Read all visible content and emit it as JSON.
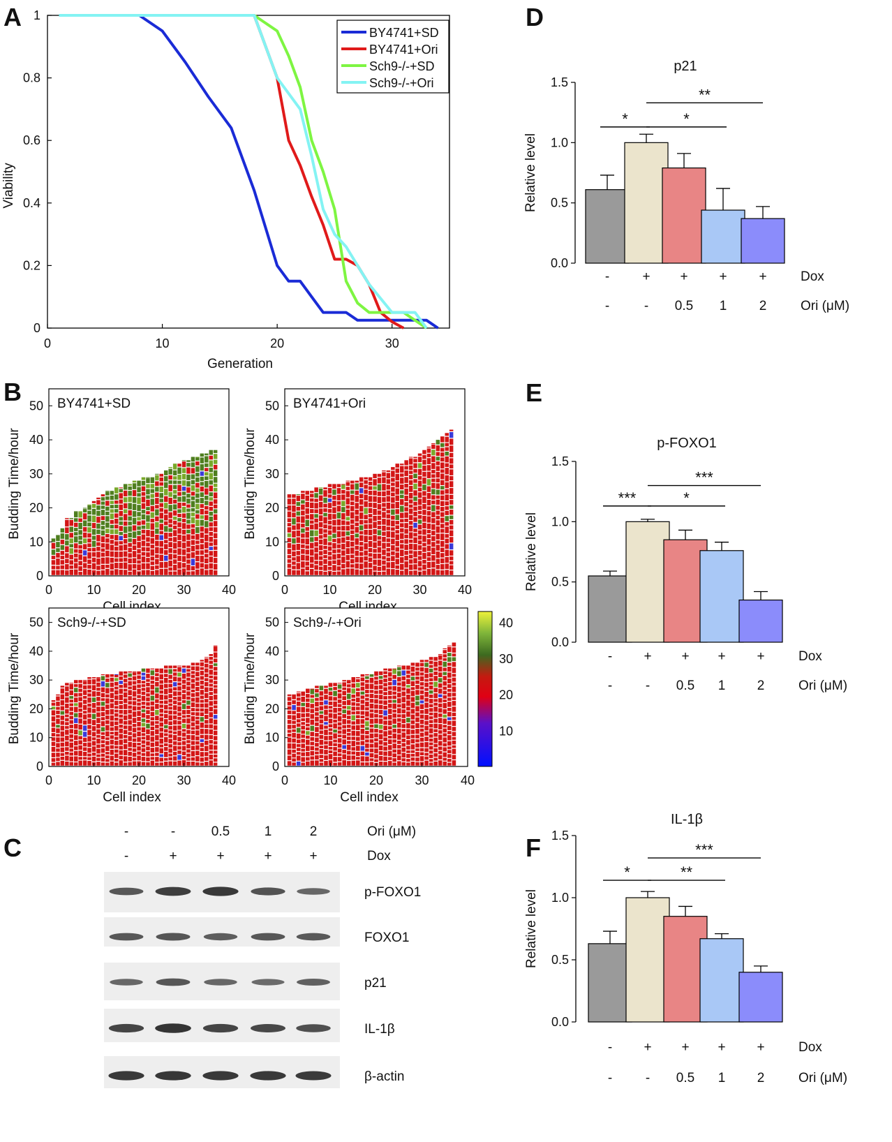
{
  "panel_labels": {
    "A": "A",
    "B": "B",
    "C": "C",
    "D": "D",
    "E": "E",
    "F": "F"
  },
  "colors": {
    "blue": "#1a2bd6",
    "red": "#e01a1a",
    "green": "#7ef542",
    "cyan": "#84f3f3"
  },
  "chart_data": [
    {
      "id": "A",
      "type": "line",
      "xlabel": "Generation",
      "ylabel": "Viability",
      "xlim": [
        0,
        35
      ],
      "ylim": [
        0,
        1
      ],
      "xticks": [
        "0",
        "10",
        "20",
        "30"
      ],
      "xtick_values": [
        0,
        10,
        20,
        30
      ],
      "yticks": [
        "0",
        "0.2",
        "0.4",
        "0.6",
        "0.8",
        "1"
      ],
      "ytick_values": [
        0,
        0.2,
        0.4,
        0.6,
        0.8,
        1
      ],
      "series": [
        {
          "name": "BY4741+SD",
          "color": "#1a2bd6",
          "x": [
            1,
            8,
            10,
            12,
            14,
            16,
            18,
            20,
            21,
            22,
            23,
            24,
            26,
            27,
            29,
            30,
            32,
            33,
            34
          ],
          "y": [
            1,
            1,
            0.95,
            0.85,
            0.74,
            0.64,
            0.44,
            0.2,
            0.15,
            0.15,
            0.1,
            0.05,
            0.05,
            0.025,
            0.025,
            0.025,
            0.025,
            0.025,
            0
          ]
        },
        {
          "name": "BY4741+Ori",
          "color": "#e01a1a",
          "x": [
            1,
            18,
            19,
            20,
            21,
            22,
            23,
            24,
            25,
            26,
            27,
            28,
            29,
            30,
            31
          ],
          "y": [
            1,
            1,
            0.9,
            0.8,
            0.6,
            0.52,
            0.42,
            0.33,
            0.22,
            0.22,
            0.2,
            0.14,
            0.05,
            0.02,
            0
          ]
        },
        {
          "name": "Sch9-/-+SD",
          "color": "#7ef542",
          "x": [
            1,
            18,
            20,
            21,
            22,
            23,
            24,
            25,
            26,
            27,
            28,
            30,
            31,
            32,
            33
          ],
          "y": [
            1,
            1,
            0.95,
            0.87,
            0.77,
            0.6,
            0.5,
            0.38,
            0.15,
            0.08,
            0.05,
            0.05,
            0.05,
            0.025,
            0
          ]
        },
        {
          "name": "Sch9-/-+Ori",
          "color": "#84f3f3",
          "x": [
            1,
            18,
            19,
            20,
            22,
            23,
            24,
            25,
            26,
            27,
            28,
            30,
            31,
            32,
            33
          ],
          "y": [
            1,
            1,
            0.9,
            0.8,
            0.7,
            0.55,
            0.38,
            0.3,
            0.26,
            0.2,
            0.14,
            0.05,
            0.05,
            0.05,
            0
          ]
        }
      ]
    },
    {
      "id": "B",
      "type": "heatmap",
      "xlabel": "Cell index",
      "ylabel": "Budding Time/hour",
      "xticks": [
        "0",
        "10",
        "20",
        "30",
        "40"
      ],
      "xtick_values": [
        0,
        10,
        20,
        30,
        40
      ],
      "yticks": [
        "0",
        "10",
        "20",
        "30",
        "40",
        "50"
      ],
      "ytick_values": [
        0,
        10,
        20,
        30,
        40,
        50
      ],
      "xlim": [
        0,
        40
      ],
      "ylim": [
        0,
        55
      ],
      "colorbar": {
        "ticks": [
          "10",
          "20",
          "30",
          "40"
        ],
        "tick_values": [
          10,
          20,
          30,
          40
        ],
        "range": [
          0,
          43
        ]
      },
      "panels": [
        {
          "title": "BY4741+SD",
          "lifespans": [
            11,
            12,
            14,
            17,
            17,
            19,
            19,
            20,
            21,
            22,
            23,
            24,
            25,
            25,
            26,
            26,
            27,
            27,
            28,
            28,
            29,
            29,
            29,
            30,
            30,
            31,
            32,
            33,
            33,
            34,
            34,
            35,
            35,
            36,
            36,
            37,
            37
          ],
          "green_density": 0.45
        },
        {
          "title": "BY4741+Ori",
          "lifespans": [
            24,
            24,
            24,
            25,
            25,
            25,
            26,
            26,
            26,
            27,
            27,
            27,
            27,
            28,
            28,
            28,
            29,
            29,
            29,
            30,
            30,
            31,
            31,
            32,
            33,
            33,
            34,
            35,
            35,
            36,
            37,
            38,
            39,
            40,
            41,
            42,
            43
          ],
          "green_density": 0.1
        },
        {
          "title": "Sch9-/-+SD",
          "lifespans": [
            23,
            25,
            28,
            29,
            29,
            30,
            30,
            30,
            31,
            31,
            31,
            32,
            32,
            32,
            32,
            33,
            33,
            33,
            33,
            33,
            34,
            34,
            34,
            34,
            34,
            35,
            35,
            35,
            35,
            35,
            35,
            36,
            36,
            37,
            38,
            39,
            42
          ],
          "green_density": 0.06
        },
        {
          "title": "Sch9-/-+Ori",
          "lifespans": [
            25,
            25,
            26,
            26,
            27,
            27,
            28,
            28,
            28,
            29,
            29,
            29,
            30,
            30,
            31,
            31,
            32,
            32,
            32,
            33,
            33,
            34,
            34,
            34,
            35,
            35,
            35,
            36,
            36,
            37,
            37,
            38,
            38,
            39,
            41,
            42,
            43
          ],
          "green_density": 0.08
        }
      ]
    },
    {
      "id": "C",
      "type": "table",
      "header_rows": [
        {
          "label": "Ori (μM)",
          "values": [
            "-",
            "-",
            "0.5",
            "1",
            "2"
          ]
        },
        {
          "label": "Dox",
          "values": [
            "-",
            "+",
            "+",
            "+",
            "+"
          ]
        }
      ],
      "blots": [
        {
          "label": "p-FOXO1",
          "intensities": [
            0.6,
            0.85,
            0.9,
            0.65,
            0.45
          ]
        },
        {
          "label": "FOXO1",
          "intensities": [
            0.6,
            0.62,
            0.55,
            0.6,
            0.58
          ]
        },
        {
          "label": "p21",
          "intensities": [
            0.45,
            0.6,
            0.45,
            0.4,
            0.5
          ]
        },
        {
          "label": "IL-1β",
          "intensities": [
            0.78,
            0.95,
            0.78,
            0.75,
            0.68
          ]
        },
        {
          "label": "β-actin",
          "intensities": [
            0.9,
            0.92,
            0.9,
            0.9,
            0.88
          ]
        }
      ]
    },
    {
      "id": "D",
      "type": "bar",
      "title": "p21",
      "ylabel": "Relative level",
      "ylim": [
        0,
        1.5
      ],
      "yticks": [
        "0.0",
        "0.5",
        "1.0",
        "1.5"
      ],
      "ytick_values": [
        0,
        0.5,
        1.0,
        1.5
      ],
      "values": [
        0.61,
        1.0,
        0.79,
        0.44,
        0.37
      ],
      "errors": [
        0.12,
        0.07,
        0.12,
        0.18,
        0.1
      ],
      "bar_colors": [
        "#9a9a9a",
        "#ebe4cc",
        "#e88585",
        "#a9c8f6",
        "#8b8cfb"
      ],
      "dox": [
        "-",
        "+",
        "+",
        "+",
        "+"
      ],
      "ori": [
        "-",
        "-",
        "0.5",
        "1",
        "2"
      ],
      "dox_label": "Dox",
      "ori_label": "Ori (μM)",
      "significance": [
        {
          "from": 0,
          "to": 1,
          "label": "*",
          "y": 1.13
        },
        {
          "from": 1,
          "to": 3,
          "label": "*",
          "y": 1.13
        },
        {
          "from": 1,
          "to": 4,
          "label": "**",
          "y": 1.33
        }
      ]
    },
    {
      "id": "E",
      "type": "bar",
      "title": "p-FOXO1",
      "ylabel": "Relative level",
      "ylim": [
        0,
        1.5
      ],
      "yticks": [
        "0.0",
        "0.5",
        "1.0",
        "1.5"
      ],
      "ytick_values": [
        0,
        0.5,
        1.0,
        1.5
      ],
      "values": [
        0.55,
        1.0,
        0.85,
        0.76,
        0.35
      ],
      "errors": [
        0.04,
        0.02,
        0.08,
        0.07,
        0.07
      ],
      "bar_colors": [
        "#9a9a9a",
        "#ebe4cc",
        "#e88585",
        "#a9c8f6",
        "#8b8cfb"
      ],
      "dox": [
        "-",
        "+",
        "+",
        "+",
        "+"
      ],
      "ori": [
        "-",
        "-",
        "0.5",
        "1",
        "2"
      ],
      "dox_label": "Dox",
      "ori_label": "Ori (μM)",
      "significance": [
        {
          "from": 0,
          "to": 1,
          "label": "***",
          "y": 1.13
        },
        {
          "from": 1,
          "to": 3,
          "label": "*",
          "y": 1.13
        },
        {
          "from": 1,
          "to": 4,
          "label": "***",
          "y": 1.3
        }
      ]
    },
    {
      "id": "F",
      "type": "bar",
      "title": "IL-1β",
      "ylabel": "Relative level",
      "ylim": [
        0,
        1.5
      ],
      "yticks": [
        "0.0",
        "0.5",
        "1.0",
        "1.5"
      ],
      "ytick_values": [
        0,
        0.5,
        1.0,
        1.5
      ],
      "values": [
        0.63,
        1.0,
        0.85,
        0.67,
        0.4
      ],
      "errors": [
        0.1,
        0.05,
        0.08,
        0.04,
        0.05
      ],
      "bar_colors": [
        "#9a9a9a",
        "#ebe4cc",
        "#e88585",
        "#a9c8f6",
        "#8b8cfb"
      ],
      "dox": [
        "-",
        "+",
        "+",
        "+",
        "+"
      ],
      "ori": [
        "-",
        "-",
        "0.5",
        "1",
        "2"
      ],
      "dox_label": "Dox",
      "ori_label": "Ori (μM)",
      "significance": [
        {
          "from": 0,
          "to": 1,
          "label": "*",
          "y": 1.14
        },
        {
          "from": 1,
          "to": 3,
          "label": "**",
          "y": 1.14
        },
        {
          "from": 1,
          "to": 4,
          "label": "***",
          "y": 1.32
        }
      ]
    }
  ]
}
